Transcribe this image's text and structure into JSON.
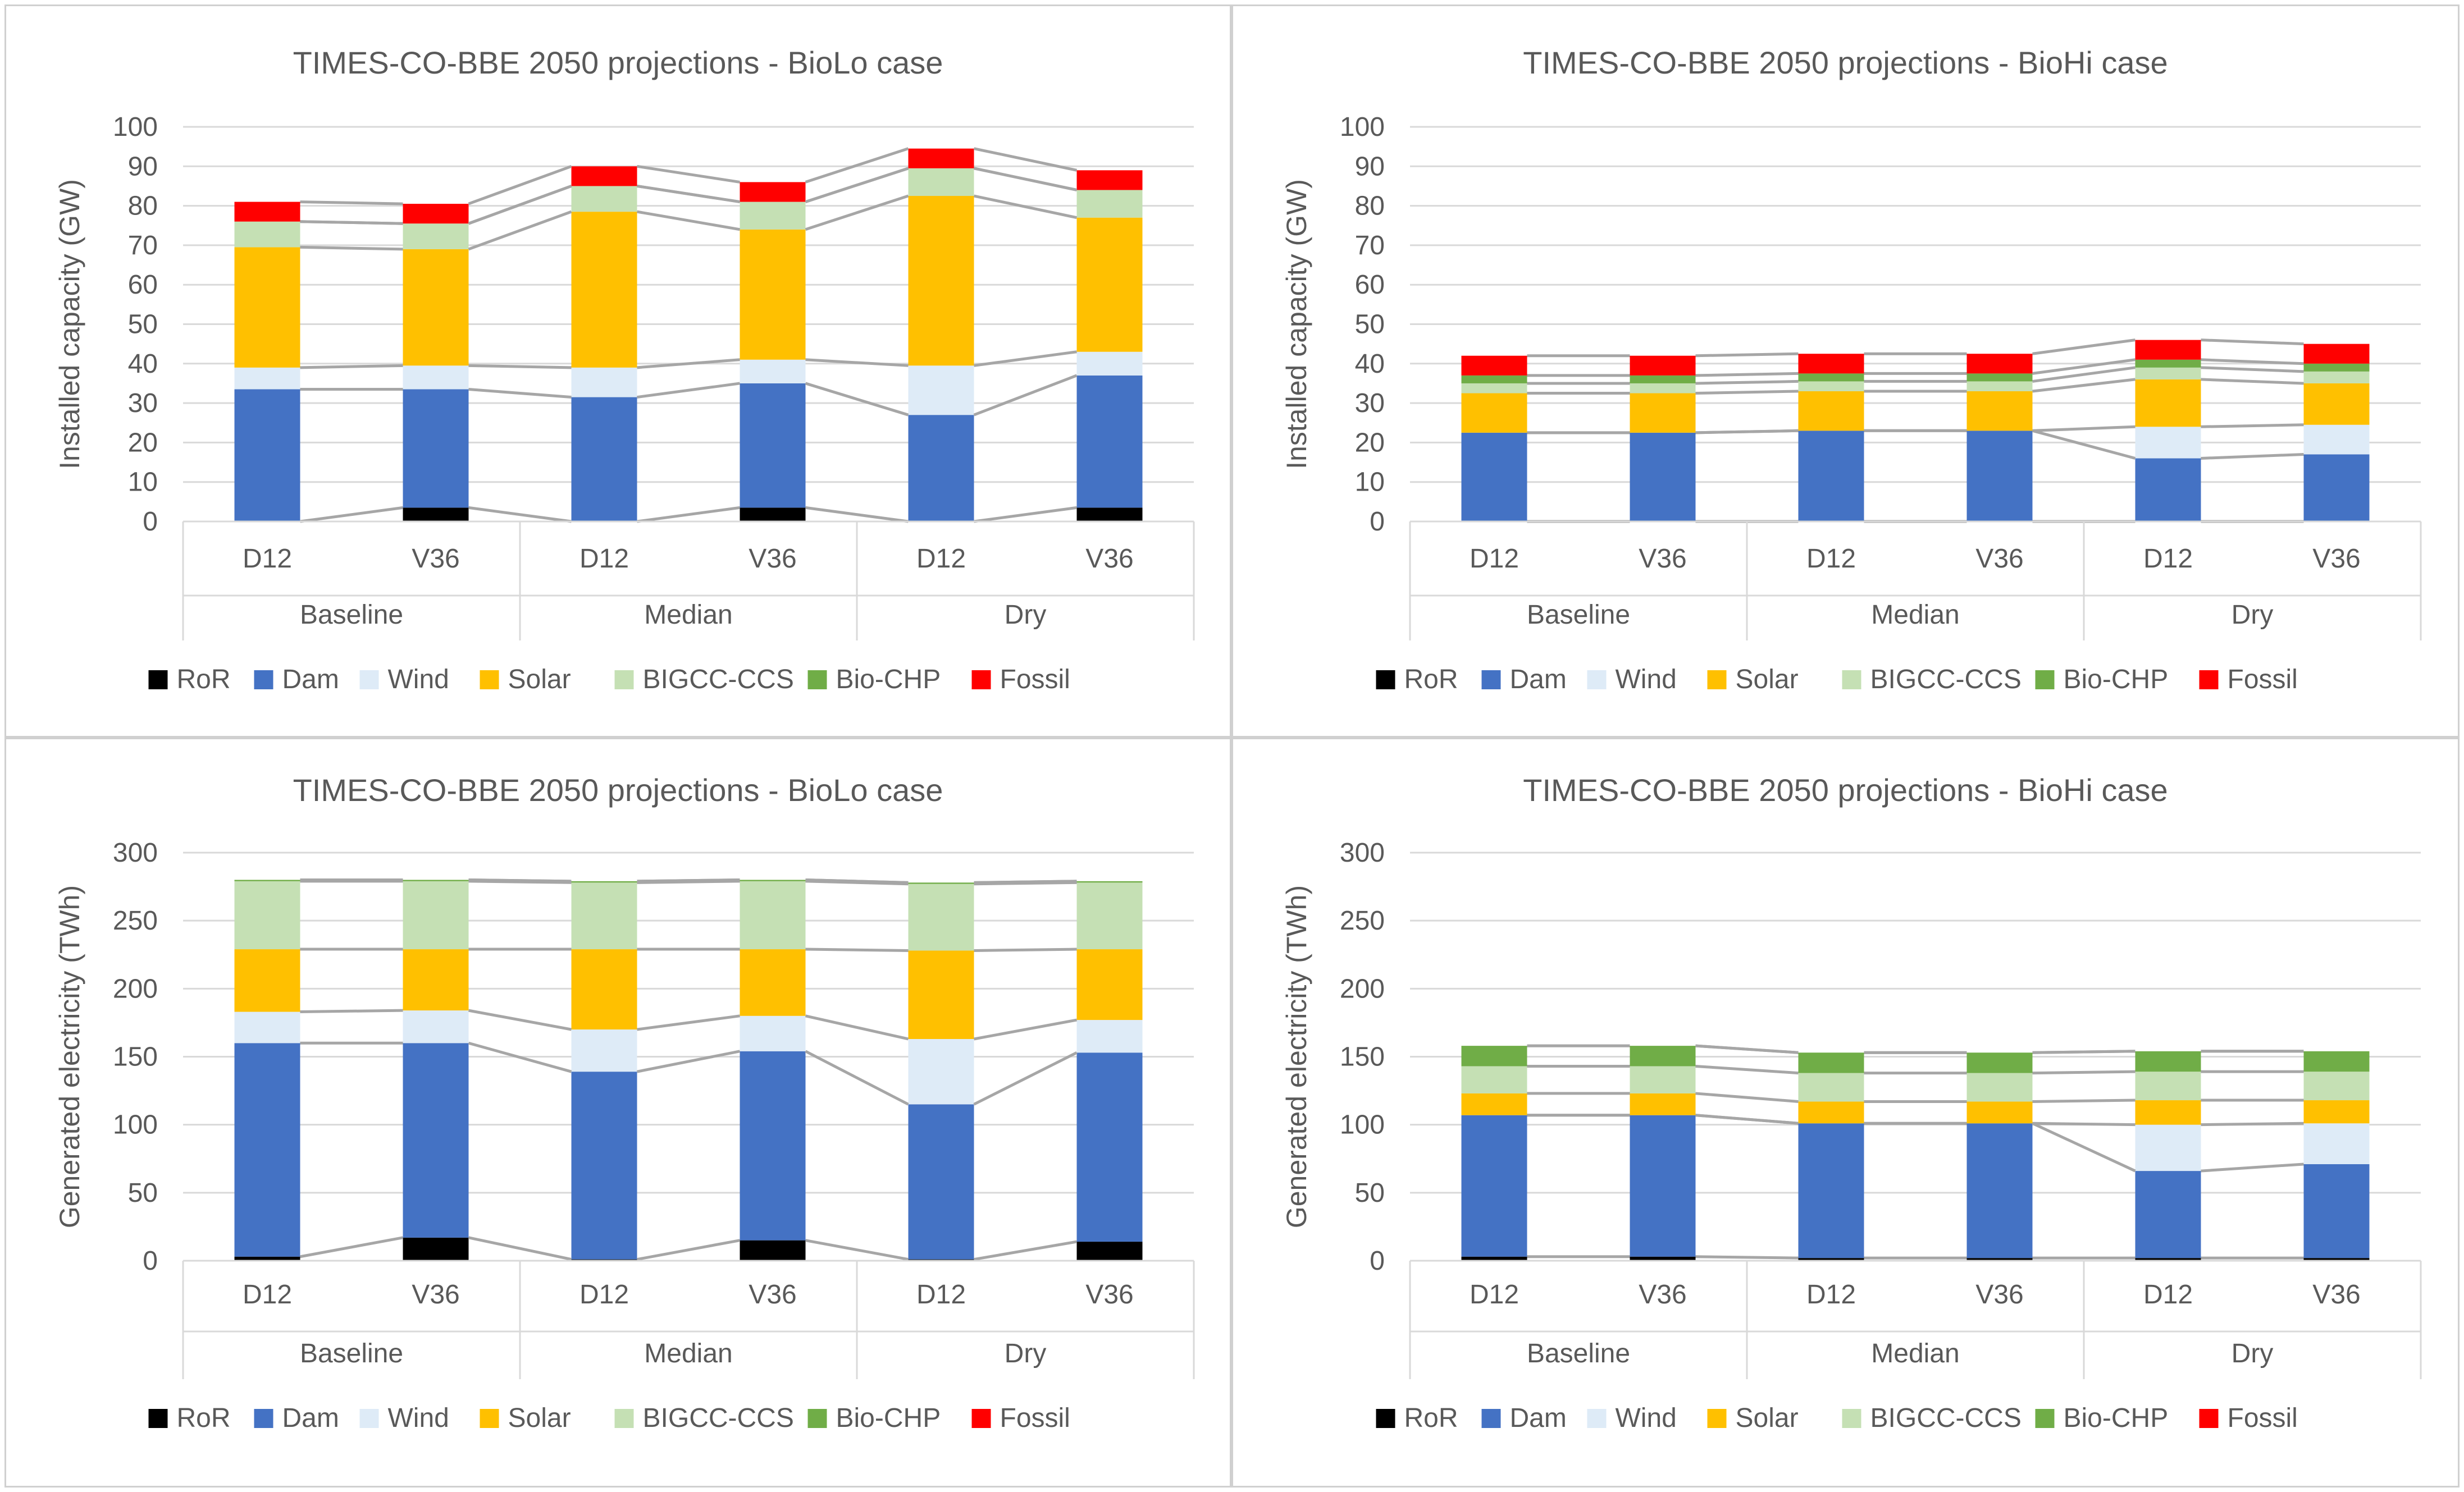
{
  "chart_data": [
    {
      "type": "bar",
      "stacked": true,
      "title": "TIMES-CO-BBE 2050 projections - BioLo case",
      "ylabel": "Installed capacity (GW)",
      "ylim": [
        0,
        100
      ],
      "yticks": [
        "0",
        "10",
        "20",
        "30",
        "40",
        "50",
        "60",
        "70",
        "80",
        "90",
        "100"
      ],
      "ystep": 10,
      "categories": [
        "D12",
        "V36",
        "D12",
        "V36",
        "D12",
        "V36"
      ],
      "groups": [
        "Baseline",
        "Median",
        "Dry"
      ],
      "legend_position": "bottom",
      "series": [
        {
          "name": "RoR",
          "color": "#000000",
          "values": [
            0,
            3.5,
            0,
            3.5,
            0,
            3.5
          ]
        },
        {
          "name": "Dam",
          "color": "#4472C4",
          "values": [
            33.5,
            30,
            31.5,
            31.5,
            27,
            33.5
          ]
        },
        {
          "name": "Wind",
          "color": "#DEEBF7",
          "values": [
            5.5,
            6,
            7.5,
            6,
            12.5,
            6
          ]
        },
        {
          "name": "Solar",
          "color": "#FFC000",
          "values": [
            30.5,
            29.5,
            39.5,
            33,
            43,
            34
          ]
        },
        {
          "name": "BIGCC-CCS",
          "color": "#C5E0B4",
          "values": [
            6.5,
            6.5,
            6.5,
            7,
            7,
            7
          ]
        },
        {
          "name": "Bio-CHP",
          "color": "#70AD47",
          "values": [
            0,
            0,
            0,
            0,
            0,
            0
          ]
        },
        {
          "name": "Fossil",
          "color": "#FF0000",
          "values": [
            5,
            5,
            5,
            5,
            5,
            5
          ]
        }
      ]
    },
    {
      "type": "bar",
      "stacked": true,
      "title": "TIMES-CO-BBE 2050 projections - BioHi case",
      "ylabel": "Installed capacity (GW)",
      "ylim": [
        0,
        100
      ],
      "yticks": [
        "0",
        "10",
        "20",
        "30",
        "40",
        "50",
        "60",
        "70",
        "80",
        "90",
        "100"
      ],
      "ystep": 10,
      "categories": [
        "D12",
        "V36",
        "D12",
        "V36",
        "D12",
        "V36"
      ],
      "groups": [
        "Baseline",
        "Median",
        "Dry"
      ],
      "legend_position": "bottom",
      "series": [
        {
          "name": "RoR",
          "color": "#000000",
          "values": [
            0,
            0,
            0,
            0,
            0,
            0
          ]
        },
        {
          "name": "Dam",
          "color": "#4472C4",
          "values": [
            22.5,
            22.5,
            23,
            23,
            16,
            17
          ]
        },
        {
          "name": "Wind",
          "color": "#DEEBF7",
          "values": [
            0,
            0,
            0,
            0,
            8,
            7.5
          ]
        },
        {
          "name": "Solar",
          "color": "#FFC000",
          "values": [
            10,
            10,
            10,
            10,
            12,
            10.5
          ]
        },
        {
          "name": "BIGCC-CCS",
          "color": "#C5E0B4",
          "values": [
            2.5,
            2.5,
            2.5,
            2.5,
            3,
            3
          ]
        },
        {
          "name": "Bio-CHP",
          "color": "#70AD47",
          "values": [
            2,
            2,
            2,
            2,
            2,
            2
          ]
        },
        {
          "name": "Fossil",
          "color": "#FF0000",
          "values": [
            5,
            5,
            5,
            5,
            5,
            5
          ]
        }
      ]
    },
    {
      "type": "bar",
      "stacked": true,
      "title": "TIMES-CO-BBE 2050 projections - BioLo case",
      "ylabel": "Generated electricity (TWh)",
      "ylim": [
        0,
        300
      ],
      "yticks": [
        "0",
        "50",
        "100",
        "150",
        "200",
        "250",
        "300"
      ],
      "ystep": 50,
      "categories": [
        "D12",
        "V36",
        "D12",
        "V36",
        "D12",
        "V36"
      ],
      "groups": [
        "Baseline",
        "Median",
        "Dry"
      ],
      "legend_position": "bottom",
      "series": [
        {
          "name": "RoR",
          "color": "#000000",
          "values": [
            3,
            17,
            1,
            15,
            1,
            14
          ]
        },
        {
          "name": "Dam",
          "color": "#4472C4",
          "values": [
            157,
            143,
            138,
            139,
            114,
            139
          ]
        },
        {
          "name": "Wind",
          "color": "#DEEBF7",
          "values": [
            23,
            24,
            31,
            26,
            48,
            24
          ]
        },
        {
          "name": "Solar",
          "color": "#FFC000",
          "values": [
            46,
            45,
            59,
            49,
            65,
            52
          ]
        },
        {
          "name": "BIGCC-CCS",
          "color": "#C5E0B4",
          "values": [
            50,
            50,
            49,
            50,
            49,
            49
          ]
        },
        {
          "name": "Bio-CHP",
          "color": "#70AD47",
          "values": [
            1,
            1,
            1,
            1,
            1,
            1
          ]
        },
        {
          "name": "Fossil",
          "color": "#FF0000",
          "values": [
            0,
            0,
            0,
            0,
            0,
            0
          ]
        }
      ]
    },
    {
      "type": "bar",
      "stacked": true,
      "title": "TIMES-CO-BBE 2050 projections - BioHi case",
      "ylabel": "Generated electricity (TWh)",
      "ylim": [
        0,
        300
      ],
      "yticks": [
        "0",
        "50",
        "100",
        "150",
        "200",
        "250",
        "300"
      ],
      "ystep": 50,
      "categories": [
        "D12",
        "V36",
        "D12",
        "V36",
        "D12",
        "V36"
      ],
      "groups": [
        "Baseline",
        "Median",
        "Dry"
      ],
      "legend_position": "bottom",
      "series": [
        {
          "name": "RoR",
          "color": "#000000",
          "values": [
            3,
            3,
            2,
            2,
            2,
            2
          ]
        },
        {
          "name": "Dam",
          "color": "#4472C4",
          "values": [
            104,
            104,
            99,
            99,
            64,
            69
          ]
        },
        {
          "name": "Wind",
          "color": "#DEEBF7",
          "values": [
            0,
            0,
            0,
            0,
            34,
            30
          ]
        },
        {
          "name": "Solar",
          "color": "#FFC000",
          "values": [
            16,
            16,
            16,
            16,
            18,
            17
          ]
        },
        {
          "name": "BIGCC-CCS",
          "color": "#C5E0B4",
          "values": [
            20,
            20,
            21,
            21,
            21,
            21
          ]
        },
        {
          "name": "Bio-CHP",
          "color": "#70AD47",
          "values": [
            15,
            15,
            15,
            15,
            15,
            15
          ]
        },
        {
          "name": "Fossil",
          "color": "#FF0000",
          "values": [
            0,
            0,
            0,
            0,
            0,
            0
          ]
        }
      ]
    }
  ]
}
